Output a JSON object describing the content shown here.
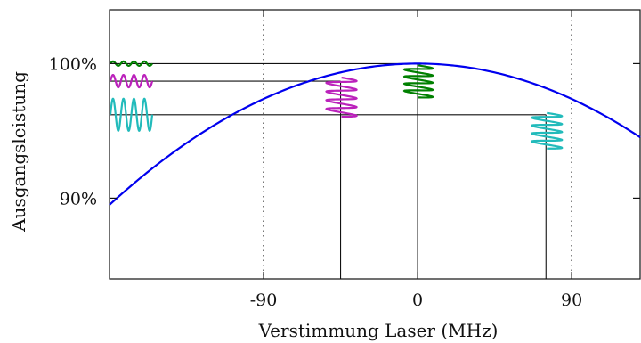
{
  "chart_data": {
    "type": "line",
    "title": "",
    "xlabel": "Verstimmung Laser (MHz)",
    "ylabel": "Ausgangsleistung",
    "xlim": [
      -180,
      130
    ],
    "ylim": [
      84,
      104
    ],
    "x_ticks": [
      -90,
      0,
      90
    ],
    "x_tick_labels": [
      "-90",
      "0",
      "90"
    ],
    "y_ticks": [
      90,
      100
    ],
    "y_tick_labels": [
      "90%",
      "100%"
    ],
    "grid": "vertical dotted lines at -90 and 90 MHz",
    "legend": "none",
    "series": [
      {
        "color": "#0000ee",
        "curve": "parabola",
        "peak_x": 0,
        "peak_y": 100,
        "x": [
          -180,
          -150,
          -120,
          -90,
          -60,
          -45,
          -30,
          0,
          30,
          60,
          75,
          90,
          120,
          130
        ],
        "y": [
          89.5,
          92.5,
          95.0,
          97.0,
          98.6,
          99.2,
          99.6,
          100.0,
          99.6,
          98.6,
          97.8,
          97.0,
          95.0,
          94.2
        ]
      }
    ],
    "operating_points": [
      {
        "color": "#008000",
        "x": 0,
        "y": 100.0
      },
      {
        "color": "#bb22bb",
        "x": -45,
        "y": 98.7
      },
      {
        "color": "#22bbbb",
        "x": 75,
        "y": 96.2
      }
    ]
  }
}
